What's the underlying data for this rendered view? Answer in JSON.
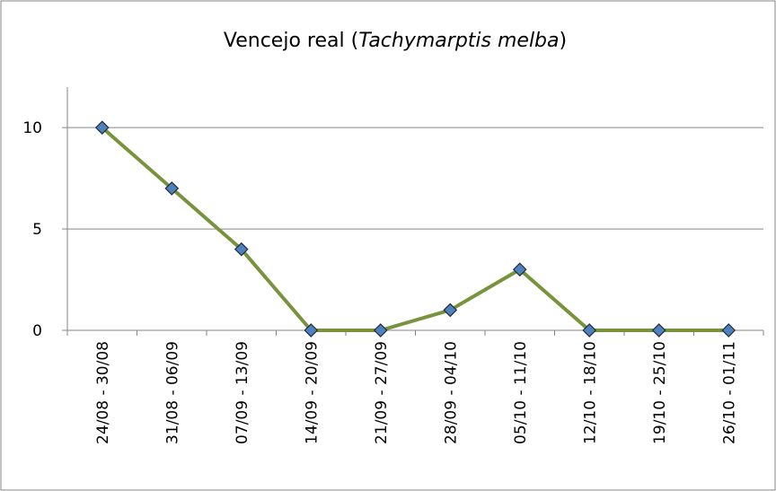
{
  "chart_data": {
    "type": "line",
    "title": [
      "Vencejo real (",
      "Tachymarptis melba",
      ")"
    ],
    "categories": [
      "24/08 - 30/08",
      "31/08 - 06/09",
      "07/09 - 13/09",
      "14/09 - 20/09",
      "21/09 - 27/09",
      "28/09 - 04/10",
      "05/10 - 11/10",
      "12/10 - 18/10",
      "19/10 - 25/10",
      "26/10 - 01/11"
    ],
    "series": [
      {
        "color": "#77933c",
        "marker_color": "#4f81bd",
        "values": [
          10,
          7,
          4,
          0,
          0,
          1,
          3,
          0,
          0,
          0
        ]
      }
    ],
    "ylim": [
      0,
      12
    ],
    "yticks": [
      0,
      5,
      10
    ],
    "grid": true
  }
}
